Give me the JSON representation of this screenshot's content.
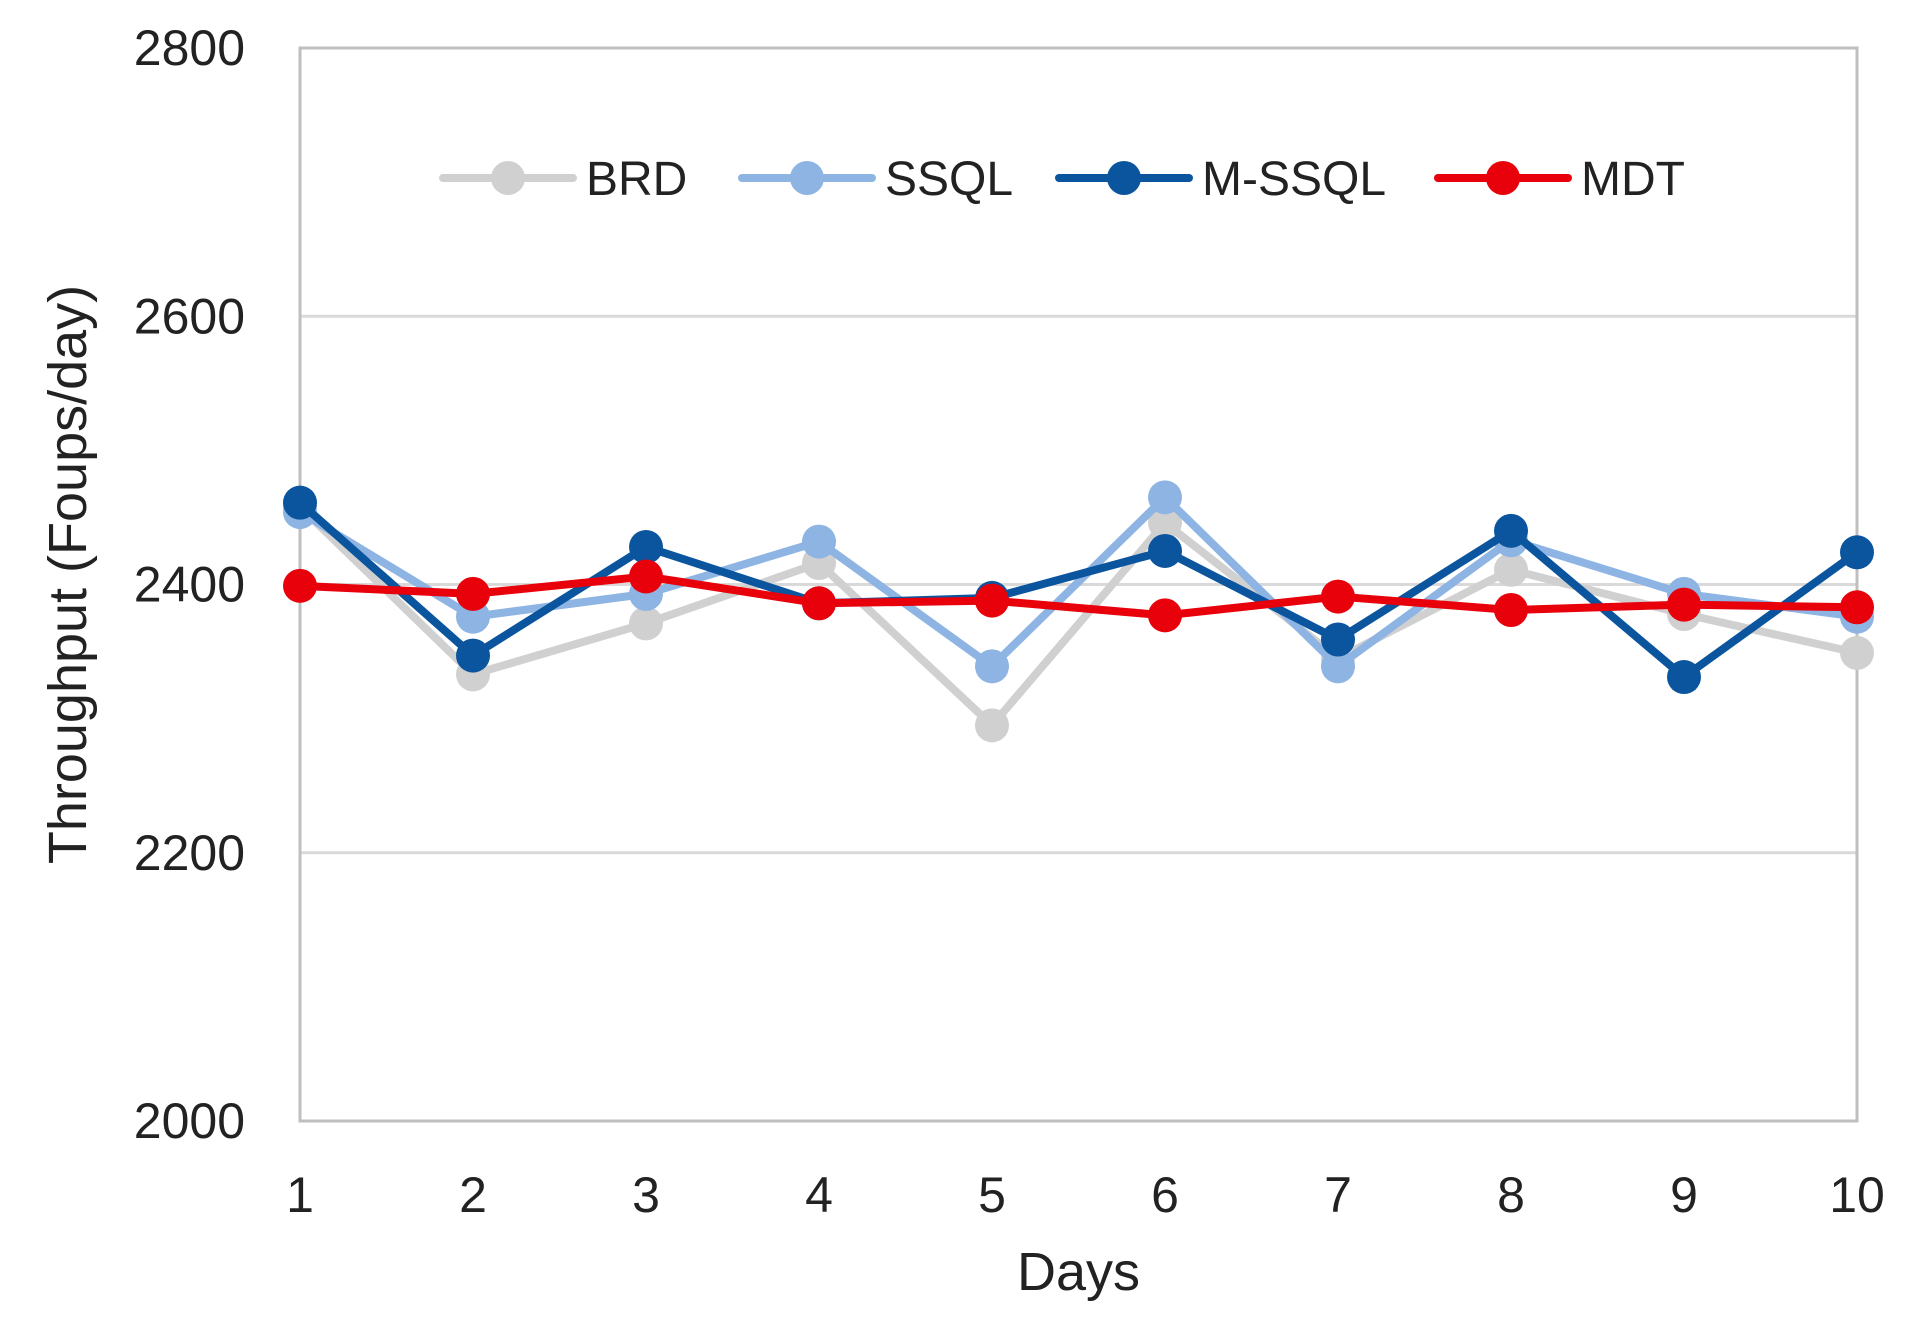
{
  "chart_data": {
    "type": "line",
    "title": "",
    "xlabel": "Days",
    "ylabel": "Throughput (Foups/day)",
    "x": [
      1,
      2,
      3,
      4,
      5,
      6,
      7,
      8,
      9,
      10
    ],
    "x_tick_labels": [
      "1",
      "2",
      "3",
      "4",
      "5",
      "6",
      "7",
      "8",
      "9",
      "10"
    ],
    "ylim": [
      2000,
      2800
    ],
    "y_ticks": [
      2000,
      2200,
      2400,
      2600,
      2800
    ],
    "y_tick_labels": [
      "2000",
      "2200",
      "2400",
      "2600",
      "2800"
    ],
    "grid": true,
    "legend_position": "top",
    "series": [
      {
        "name": "BRD",
        "color": "#d0d0d0",
        "values": [
          2458,
          2333,
          2371,
          2416,
          2295,
          2446,
          2345,
          2411,
          2378,
          2349
        ]
      },
      {
        "name": "SSQL",
        "color": "#8eb4e3",
        "values": [
          2454,
          2376,
          2393,
          2432,
          2339,
          2465,
          2339,
          2433,
          2393,
          2376
        ]
      },
      {
        "name": "M-SSQL",
        "color": "#0b559f",
        "values": [
          2461,
          2347,
          2428,
          2386,
          2390,
          2425,
          2359,
          2440,
          2331,
          2424
        ]
      },
      {
        "name": "MDT",
        "color": "#e8000b",
        "values": [
          2399,
          2393,
          2406,
          2386,
          2388,
          2377,
          2391,
          2381,
          2385,
          2383
        ]
      }
    ]
  }
}
